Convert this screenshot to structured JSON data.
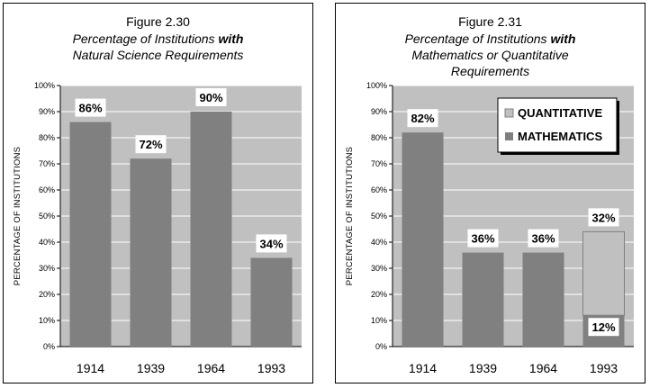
{
  "colors": {
    "plot_bg": "#c0c0c0",
    "mathematics": "#808080",
    "quantitative": "#c0c0c0",
    "grid": "#ffffff",
    "label_bg": "#ffffff"
  },
  "chart_data": [
    {
      "type": "bar",
      "figure_label": "Figure 2.30",
      "title_pre": "Percentage of Institutions ",
      "title_bold": "with",
      "title_line2": "Natural Science Requirements",
      "title_line3": "",
      "ylabel": "PERCENTAGE OF INSTITUTIONS",
      "ylim": [
        0,
        100
      ],
      "yticks": [
        "0%",
        "10%",
        "20%",
        "30%",
        "40%",
        "50%",
        "60%",
        "70%",
        "80%",
        "90%",
        "100%"
      ],
      "categories": [
        "1914",
        "1939",
        "1964",
        "1993"
      ],
      "series": [
        {
          "values": [
            86,
            72,
            90,
            34
          ]
        }
      ],
      "data_labels": [
        "86%",
        "72%",
        "90%",
        "34%"
      ],
      "grid": true
    },
    {
      "type": "bar",
      "figure_label": "Figure 2.31",
      "title_pre": "Percentage of Institutions ",
      "title_bold": "with",
      "title_line2": "Mathematics or Quantitative",
      "title_line3": "Requirements",
      "ylabel": "PERCENTAGE OF INSTITUTIONS",
      "ylim": [
        0,
        100
      ],
      "yticks": [
        "0%",
        "10%",
        "20%",
        "30%",
        "40%",
        "50%",
        "60%",
        "70%",
        "80%",
        "90%",
        "100%"
      ],
      "categories": [
        "1914",
        "1939",
        "1964",
        "1993"
      ],
      "stacked": true,
      "series": [
        {
          "name": "MATHEMATICS",
          "values": [
            82,
            36,
            36,
            12
          ]
        },
        {
          "name": "QUANTITATIVE",
          "values": [
            0,
            0,
            0,
            32
          ]
        }
      ],
      "data_labels": {
        "MATHEMATICS": [
          "82%",
          "36%",
          "36%",
          "12%"
        ],
        "QUANTITATIVE": [
          "",
          "",
          "",
          "32%"
        ]
      },
      "legend": {
        "position": "top-right",
        "entries": [
          "QUANTITATIVE",
          "MATHEMATICS"
        ]
      },
      "grid": true
    }
  ]
}
